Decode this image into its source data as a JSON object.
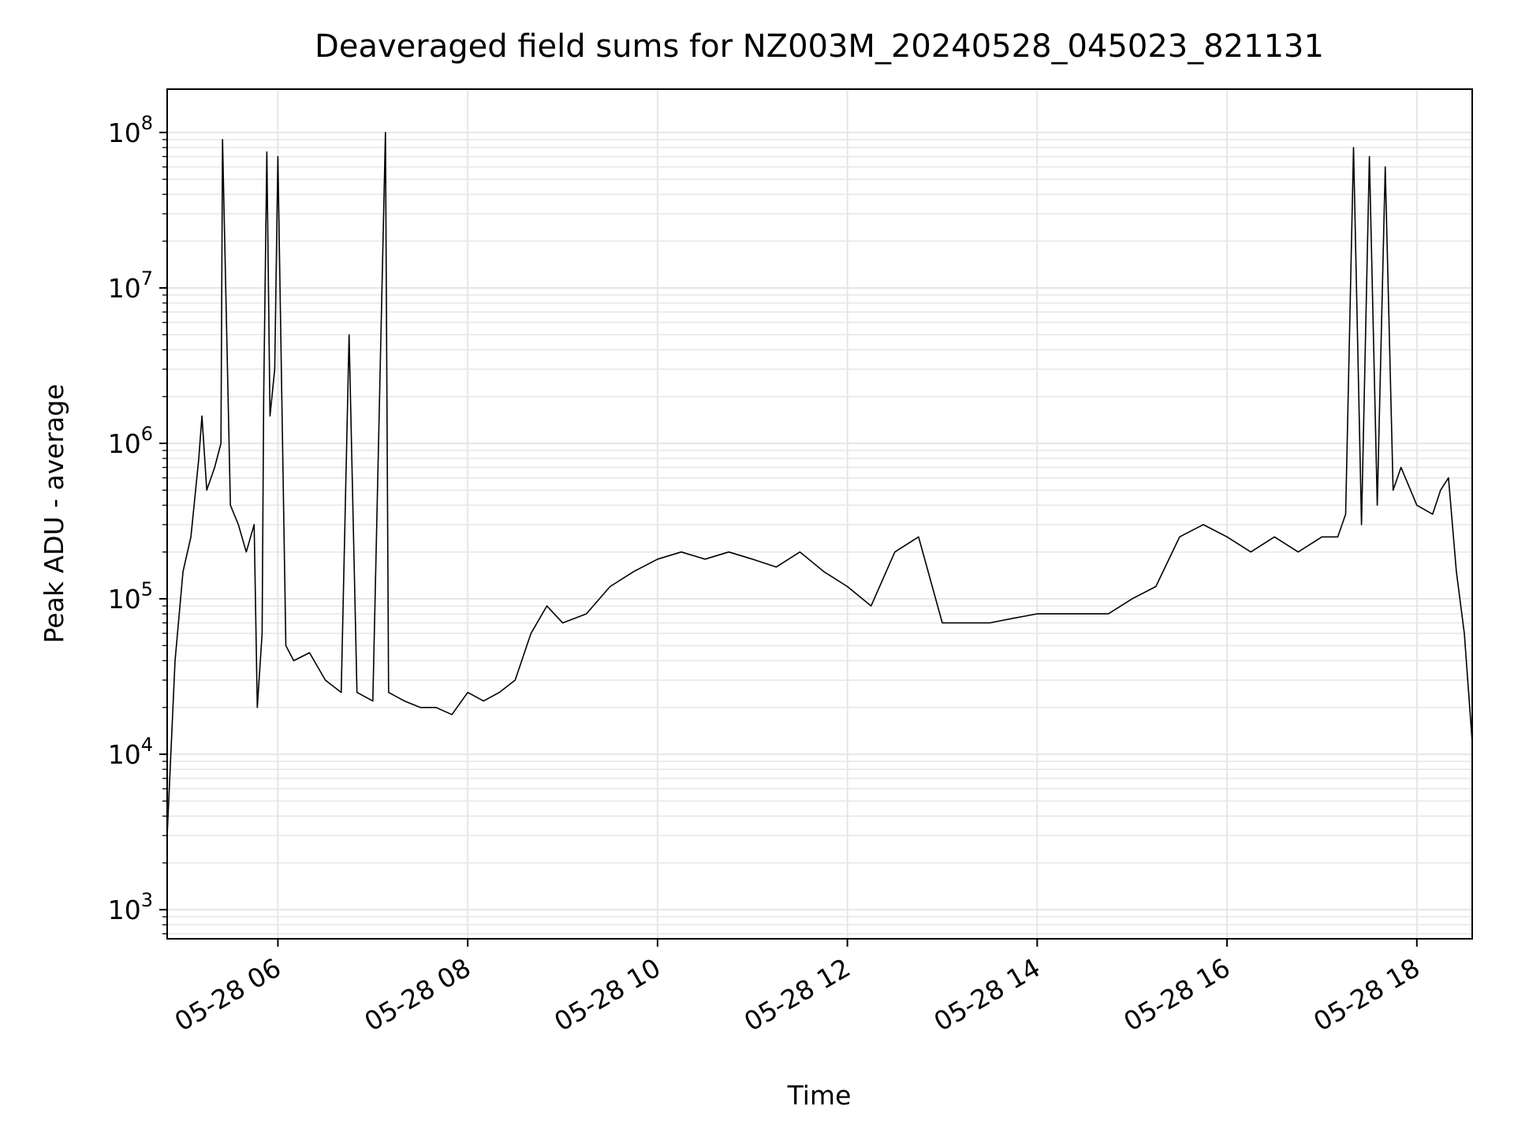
{
  "chart_data": {
    "type": "line",
    "title": "Deaveraged field sums for NZ003M_20240528_045023_821131",
    "xlabel": "Time",
    "ylabel": "Peak ADU - average",
    "yscale": "log",
    "ylim": [
      650,
      190000000
    ],
    "xlim": [
      "05-28 04:50",
      "05-28 18:35"
    ],
    "x_ticks": [
      {
        "value": "05-28 06:00",
        "label": "05-28 06"
      },
      {
        "value": "05-28 08:00",
        "label": "05-28 08"
      },
      {
        "value": "05-28 10:00",
        "label": "05-28 10"
      },
      {
        "value": "05-28 12:00",
        "label": "05-28 12"
      },
      {
        "value": "05-28 14:00",
        "label": "05-28 14"
      },
      {
        "value": "05-28 16:00",
        "label": "05-28 16"
      },
      {
        "value": "05-28 18:00",
        "label": "05-28 18"
      }
    ],
    "y_ticks": [
      {
        "value": 1000,
        "base": "10",
        "exp": "3"
      },
      {
        "value": 10000,
        "base": "10",
        "exp": "4"
      },
      {
        "value": 100000,
        "base": "10",
        "exp": "5"
      },
      {
        "value": 1000000,
        "base": "10",
        "exp": "6"
      },
      {
        "value": 10000000,
        "base": "10",
        "exp": "7"
      },
      {
        "value": 100000000,
        "base": "10",
        "exp": "8"
      }
    ],
    "grid": true,
    "line_color": "#000000",
    "grid_color": "#e6e6e6",
    "series": [
      {
        "x": [
          "05-28 04:50",
          "05-28 04:55",
          "05-28 05:00",
          "05-28 05:05",
          "05-28 05:10",
          "05-28 05:12",
          "05-28 05:15",
          "05-28 05:20",
          "05-28 05:24",
          "05-28 05:25",
          "05-28 05:30",
          "05-28 05:35",
          "05-28 05:40",
          "05-28 05:45",
          "05-28 05:47",
          "05-28 05:50",
          "05-28 05:51",
          "05-28 05:53",
          "05-28 05:55",
          "05-28 05:58",
          "05-28 06:00",
          "05-28 06:05",
          "05-28 06:10",
          "05-28 06:20",
          "05-28 06:30",
          "05-28 06:40",
          "05-28 06:45",
          "05-28 06:50",
          "05-28 07:00",
          "05-28 07:08",
          "05-28 07:10",
          "05-28 07:20",
          "05-28 07:30",
          "05-28 07:40",
          "05-28 07:50",
          "05-28 08:00",
          "05-28 08:10",
          "05-28 08:20",
          "05-28 08:30",
          "05-28 08:40",
          "05-28 08:50",
          "05-28 09:00",
          "05-28 09:15",
          "05-28 09:30",
          "05-28 09:45",
          "05-28 10:00",
          "05-28 10:15",
          "05-28 10:30",
          "05-28 10:45",
          "05-28 11:00",
          "05-28 11:15",
          "05-28 11:30",
          "05-28 11:45",
          "05-28 12:00",
          "05-28 12:15",
          "05-28 12:30",
          "05-28 12:45",
          "05-28 13:00",
          "05-28 13:15",
          "05-28 13:30",
          "05-28 13:45",
          "05-28 14:00",
          "05-28 14:15",
          "05-28 14:30",
          "05-28 14:45",
          "05-28 15:00",
          "05-28 15:15",
          "05-28 15:30",
          "05-28 15:45",
          "05-28 16:00",
          "05-28 16:15",
          "05-28 16:30",
          "05-28 16:45",
          "05-28 17:00",
          "05-28 17:10",
          "05-28 17:15",
          "05-28 17:20",
          "05-28 17:25",
          "05-28 17:30",
          "05-28 17:35",
          "05-28 17:40",
          "05-28 17:45",
          "05-28 17:50",
          "05-28 18:00",
          "05-28 18:10",
          "05-28 18:15",
          "05-28 18:20",
          "05-28 18:25",
          "05-28 18:30",
          "05-28 18:35"
        ],
        "y": [
          3000,
          40000,
          150000,
          250000,
          800000,
          1500000,
          500000,
          700000,
          1000000,
          90000000,
          400000,
          300000,
          200000,
          300000,
          20000,
          60000,
          2000000,
          75000000,
          1500000,
          3000000,
          70000000,
          50000,
          40000,
          45000,
          30000,
          25000,
          5000000,
          25000,
          22000,
          100000000,
          25000,
          22000,
          20000,
          20000,
          18000,
          25000,
          22000,
          25000,
          30000,
          60000,
          90000,
          70000,
          80000,
          120000,
          150000,
          180000,
          200000,
          180000,
          200000,
          180000,
          160000,
          200000,
          150000,
          120000,
          90000,
          200000,
          250000,
          70000,
          70000,
          70000,
          75000,
          80000,
          80000,
          80000,
          80000,
          100000,
          120000,
          250000,
          300000,
          250000,
          200000,
          250000,
          200000,
          250000,
          250000,
          350000,
          80000000,
          300000,
          70000000,
          400000,
          60000000,
          500000,
          700000,
          400000,
          350000,
          500000,
          600000,
          150000,
          60000,
          12000
        ]
      }
    ]
  }
}
